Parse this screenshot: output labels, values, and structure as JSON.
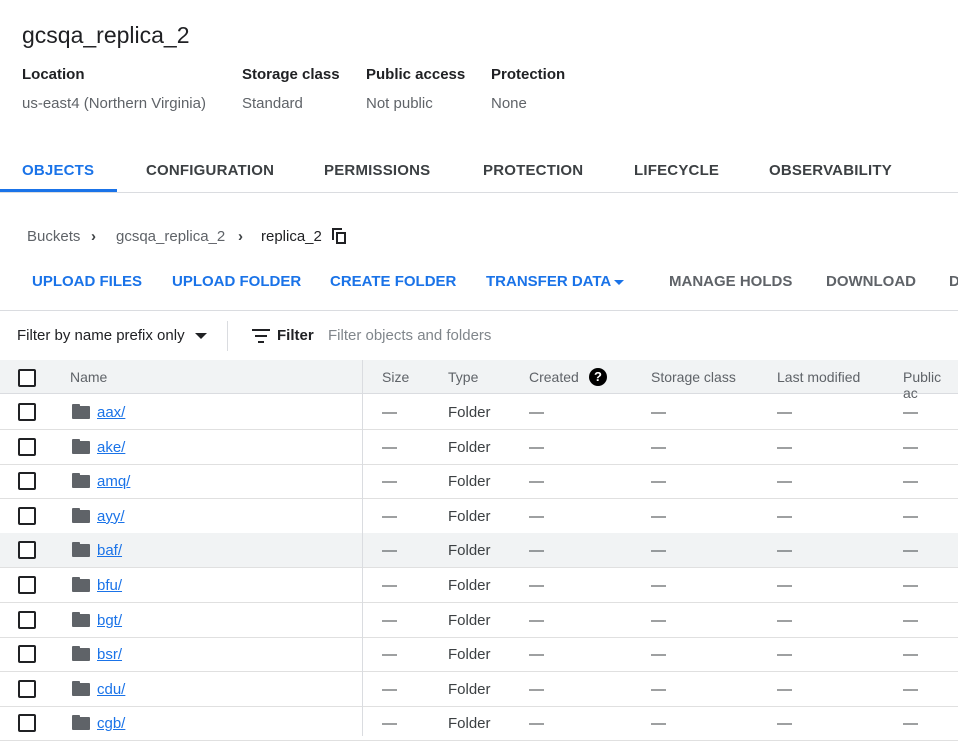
{
  "bucket": {
    "title": "gcsqa_replica_2",
    "meta": [
      {
        "label": "Location",
        "value": "us-east4 (Northern Virginia)"
      },
      {
        "label": "Storage class",
        "value": "Standard"
      },
      {
        "label": "Public access",
        "value": "Not public"
      },
      {
        "label": "Protection",
        "value": "None"
      }
    ]
  },
  "tabs": [
    "OBJECTS",
    "CONFIGURATION",
    "PERMISSIONS",
    "PROTECTION",
    "LIFECYCLE",
    "OBSERVABILITY"
  ],
  "active_tab": "OBJECTS",
  "breadcrumb": [
    "Buckets",
    "gcsqa_replica_2",
    "replica_2"
  ],
  "actions": [
    "UPLOAD FILES",
    "UPLOAD FOLDER",
    "CREATE FOLDER",
    "TRANSFER DATA",
    "MANAGE HOLDS",
    "DOWNLOAD",
    "D"
  ],
  "filter": {
    "mode": "Filter by name prefix only",
    "label": "Filter",
    "placeholder": "Filter objects and folders"
  },
  "columns": [
    "Name",
    "Size",
    "Type",
    "Created",
    "Storage class",
    "Last modified",
    "Public ac"
  ],
  "rows": [
    {
      "name": "aax/",
      "size": "—",
      "type": "Folder",
      "created": "—",
      "storage": "—",
      "modified": "—",
      "public": "—"
    },
    {
      "name": "ake/",
      "size": "—",
      "type": "Folder",
      "created": "—",
      "storage": "—",
      "modified": "—",
      "public": "—"
    },
    {
      "name": "amq/",
      "size": "—",
      "type": "Folder",
      "created": "—",
      "storage": "—",
      "modified": "—",
      "public": "—"
    },
    {
      "name": "ayy/",
      "size": "—",
      "type": "Folder",
      "created": "—",
      "storage": "—",
      "modified": "—",
      "public": "—"
    },
    {
      "name": "baf/",
      "size": "—",
      "type": "Folder",
      "created": "—",
      "storage": "—",
      "modified": "—",
      "public": "—"
    },
    {
      "name": "bfu/",
      "size": "—",
      "type": "Folder",
      "created": "—",
      "storage": "—",
      "modified": "—",
      "public": "—"
    },
    {
      "name": "bgt/",
      "size": "—",
      "type": "Folder",
      "created": "—",
      "storage": "—",
      "modified": "—",
      "public": "—"
    },
    {
      "name": "bsr/",
      "size": "—",
      "type": "Folder",
      "created": "—",
      "storage": "—",
      "modified": "—",
      "public": "—"
    },
    {
      "name": "cdu/",
      "size": "—",
      "type": "Folder",
      "created": "—",
      "storage": "—",
      "modified": "—",
      "public": "—"
    },
    {
      "name": "cgb/",
      "size": "—",
      "type": "Folder",
      "created": "—",
      "storage": "—",
      "modified": "—",
      "public": "—"
    }
  ],
  "colors": {
    "accent": "#1a73e8",
    "text": "#202124",
    "muted": "#5f6368"
  }
}
